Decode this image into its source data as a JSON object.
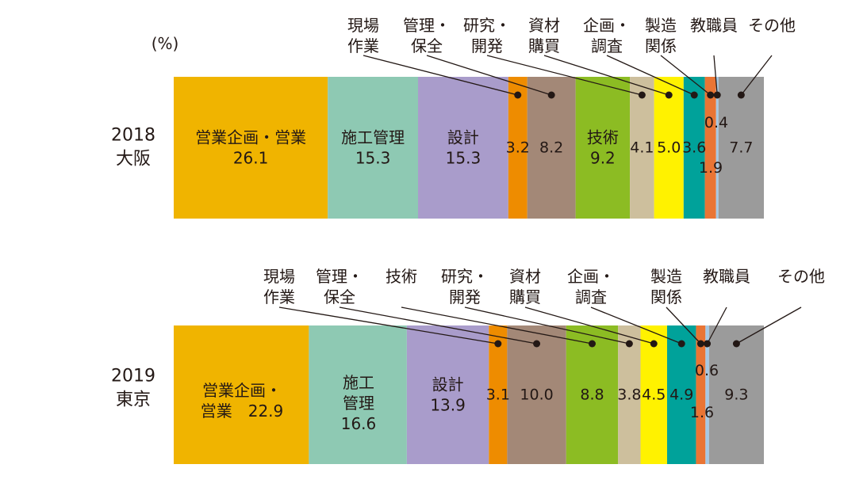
{
  "unit_label": "(%)",
  "chart_data": [
    {
      "type": "bar",
      "stacked": true,
      "orientation": "horizontal",
      "label_lines": [
        "2018",
        "大阪"
      ],
      "segments": [
        {
          "name": "営業企画・営業",
          "value": 26.1,
          "color": "#f0b400"
        },
        {
          "name": "施工管理",
          "value": 15.3,
          "color": "#8ec9b3"
        },
        {
          "name": "設計",
          "value": 15.3,
          "color": "#a99ccb"
        },
        {
          "name": "現場作業",
          "value": 3.2,
          "color": "#ee8c00"
        },
        {
          "name": "管理・保全",
          "value": 8.2,
          "color": "#a38877"
        },
        {
          "name": "技術",
          "value": 9.2,
          "color": "#8cbc23"
        },
        {
          "name": "研究・開発",
          "value": 4.1,
          "color": "#cdbf9d"
        },
        {
          "name": "資材購買",
          "value": 5.0,
          "color": "#fff200"
        },
        {
          "name": "企画・調査",
          "value": 3.6,
          "color": "#00a29a"
        },
        {
          "name": "製造関係",
          "value": 1.9,
          "color": "#e97535"
        },
        {
          "name": "教職員",
          "value": 0.4,
          "color": "#a5c8e4"
        },
        {
          "name": "その他",
          "value": 7.7,
          "color": "#9b9b9b"
        }
      ]
    },
    {
      "type": "bar",
      "stacked": true,
      "orientation": "horizontal",
      "label_lines": [
        "2019",
        "東京"
      ],
      "segments": [
        {
          "name": "営業企画・営業",
          "value": 22.9,
          "color": "#f0b400"
        },
        {
          "name": "施工管理",
          "value": 16.6,
          "color": "#8ec9b3"
        },
        {
          "name": "設計",
          "value": 13.9,
          "color": "#a99ccb"
        },
        {
          "name": "現場作業",
          "value": 3.1,
          "color": "#ee8c00"
        },
        {
          "name": "管理・保全",
          "value": 10.0,
          "color": "#a38877"
        },
        {
          "name": "技術",
          "value": 8.8,
          "color": "#8cbc23"
        },
        {
          "name": "研究・開発",
          "value": 3.8,
          "color": "#cdbf9d"
        },
        {
          "name": "資材購買",
          "value": 4.5,
          "color": "#fff200"
        },
        {
          "name": "企画・調査",
          "value": 4.9,
          "color": "#00a29a"
        },
        {
          "name": "製造関係",
          "value": 1.6,
          "color": "#e97535"
        },
        {
          "name": "教職員",
          "value": 0.6,
          "color": "#a5c8e4"
        },
        {
          "name": "その他",
          "value": 9.3,
          "color": "#9b9b9b"
        }
      ]
    }
  ],
  "segment_labels": [
    [
      {
        "lines": [
          "営業企画・営業",
          "26.1"
        ]
      },
      {
        "lines": [
          "施工管理",
          "15.3"
        ]
      },
      {
        "lines": [
          "設計",
          "15.3"
        ]
      },
      {
        "lines": [
          "3.2"
        ]
      },
      {
        "lines": [
          "8.2"
        ]
      },
      {
        "lines": [
          "技術",
          "9.2"
        ]
      },
      {
        "lines": [
          "4.1"
        ]
      },
      {
        "lines": [
          "5.0"
        ]
      },
      {
        "lines": [
          "3.6"
        ]
      },
      {
        "lines": [
          "1.9"
        ]
      },
      {
        "lines": [
          "0.4"
        ]
      },
      {
        "lines": [
          "7.7"
        ]
      }
    ],
    [
      {
        "lines": [
          "営業企画・",
          "営業　22.9"
        ]
      },
      {
        "lines": [
          "施工",
          "管理",
          "16.6"
        ]
      },
      {
        "lines": [
          "設計",
          "13.9"
        ]
      },
      {
        "lines": [
          "3.1"
        ]
      },
      {
        "lines": [
          "10.0"
        ]
      },
      {
        "lines": [
          "8.8"
        ]
      },
      {
        "lines": [
          "3.8"
        ]
      },
      {
        "lines": [
          "4.5"
        ]
      },
      {
        "lines": [
          "4.9"
        ]
      },
      {
        "lines": [
          "1.6"
        ]
      },
      {
        "lines": [
          "0.6"
        ]
      },
      {
        "lines": [
          "9.3"
        ]
      }
    ]
  ],
  "callouts": [
    [
      {
        "segment": 3,
        "lines": [
          "現場",
          "作業"
        ]
      },
      {
        "segment": 4,
        "lines": [
          "管理・",
          "保全"
        ]
      },
      {
        "segment": 6,
        "lines": [
          "研究・",
          "開発"
        ]
      },
      {
        "segment": 7,
        "lines": [
          "資材",
          "購買"
        ]
      },
      {
        "segment": 8,
        "lines": [
          "企画・",
          "調査"
        ]
      },
      {
        "segment": 9,
        "lines": [
          "製造",
          "関係"
        ]
      },
      {
        "segment": 10,
        "lines": [
          "教職員"
        ]
      },
      {
        "segment": 11,
        "lines": [
          "その他"
        ]
      }
    ],
    [
      {
        "segment": 3,
        "lines": [
          "現場",
          "作業"
        ]
      },
      {
        "segment": 4,
        "lines": [
          "管理・",
          "保全"
        ]
      },
      {
        "segment": 5,
        "lines": [
          "技術"
        ]
      },
      {
        "segment": 6,
        "lines": [
          "研究・",
          "開発"
        ]
      },
      {
        "segment": 7,
        "lines": [
          "資材",
          "購買"
        ]
      },
      {
        "segment": 8,
        "lines": [
          "企画・",
          "調査"
        ]
      },
      {
        "segment": 9,
        "lines": [
          "製造",
          "関係"
        ]
      },
      {
        "segment": 10,
        "lines": [
          "教職員"
        ]
      },
      {
        "segment": 11,
        "lines": [
          "その他"
        ]
      }
    ]
  ]
}
